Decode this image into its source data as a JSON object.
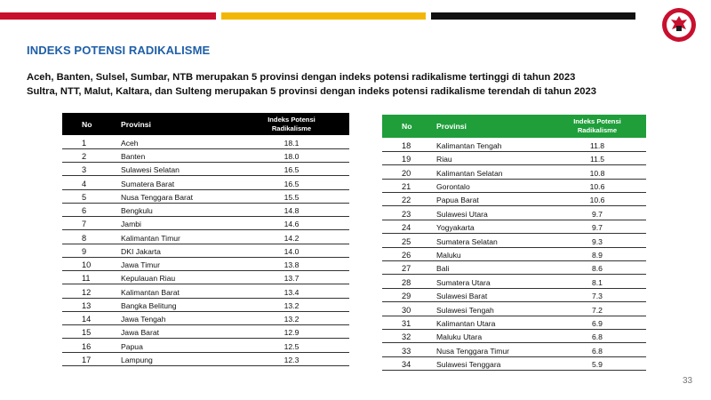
{
  "colors": {
    "accent_red": "#c8102e",
    "accent_yellow": "#f2b705",
    "accent_black": "#111111",
    "title_blue": "#1f5fa8",
    "table_green": "#1f9e3a"
  },
  "title": "INDEKS POTENSI RADIKALISME",
  "subtitle_1": "Aceh, Banten, Sulsel, Sumbar, NTB merupakan 5 provinsi dengan indeks potensi radikalisme tertinggi di tahun 2023",
  "subtitle_2": "Sultra, NTT, Malut, Kaltara, dan Sulteng merupakan 5 provinsi dengan indeks potensi radikalisme terendah di tahun 2023",
  "logo_icon": "bnpt-garuda-emblem-icon",
  "headers": {
    "no": "No",
    "provinsi": "Provinsi",
    "indeks_line1": "Indeks Potensi",
    "indeks_line2": "Radikalisme"
  },
  "table_top": [
    {
      "no": "1",
      "provinsi": "Aceh",
      "indeks": "18.1"
    },
    {
      "no": "2",
      "provinsi": "Banten",
      "indeks": "18.0"
    },
    {
      "no": "3",
      "provinsi": "Sulawesi Selatan",
      "indeks": "16.5"
    },
    {
      "no": "4",
      "provinsi": "Sumatera Barat",
      "indeks": "16.5"
    },
    {
      "no": "5",
      "provinsi": "Nusa Tenggara Barat",
      "indeks": "15.5"
    },
    {
      "no": "6",
      "provinsi": "Bengkulu",
      "indeks": "14.8"
    },
    {
      "no": "7",
      "provinsi": "Jambi",
      "indeks": "14.6"
    },
    {
      "no": "8",
      "provinsi": "Kalimantan Timur",
      "indeks": "14.2"
    },
    {
      "no": "9",
      "provinsi": "DKI Jakarta",
      "indeks": "14.0"
    },
    {
      "no": "10",
      "provinsi": "Jawa Timur",
      "indeks": "13.8"
    },
    {
      "no": "11",
      "provinsi": "Kepulauan Riau",
      "indeks": "13.7"
    },
    {
      "no": "12",
      "provinsi": "Kalimantan Barat",
      "indeks": "13.4"
    },
    {
      "no": "13",
      "provinsi": "Bangka Belitung",
      "indeks": "13.2"
    },
    {
      "no": "14",
      "provinsi": "Jawa Tengah",
      "indeks": "13.2"
    },
    {
      "no": "15",
      "provinsi": "Jawa Barat",
      "indeks": "12.9"
    },
    {
      "no": "16",
      "provinsi": "Papua",
      "indeks": "12.5"
    },
    {
      "no": "17",
      "provinsi": "Lampung",
      "indeks": "12.3"
    }
  ],
  "table_bottom": [
    {
      "no": "18",
      "provinsi": "Kalimantan Tengah",
      "indeks": "11.8"
    },
    {
      "no": "19",
      "provinsi": "Riau",
      "indeks": "11.5"
    },
    {
      "no": "20",
      "provinsi": "Kalimantan Selatan",
      "indeks": "10.8"
    },
    {
      "no": "21",
      "provinsi": "Gorontalo",
      "indeks": "10.6"
    },
    {
      "no": "22",
      "provinsi": "Papua Barat",
      "indeks": "10.6"
    },
    {
      "no": "23",
      "provinsi": "Sulawesi Utara",
      "indeks": "9.7"
    },
    {
      "no": "24",
      "provinsi": "Yogyakarta",
      "indeks": "9.7"
    },
    {
      "no": "25",
      "provinsi": "Sumatera Selatan",
      "indeks": "9.3"
    },
    {
      "no": "26",
      "provinsi": "Maluku",
      "indeks": "8.9"
    },
    {
      "no": "27",
      "provinsi": "Bali",
      "indeks": "8.6"
    },
    {
      "no": "28",
      "provinsi": "Sumatera Utara",
      "indeks": "8.1"
    },
    {
      "no": "29",
      "provinsi": "Sulawesi Barat",
      "indeks": "7.3"
    },
    {
      "no": "30",
      "provinsi": "Sulawesi Tengah",
      "indeks": "7.2"
    },
    {
      "no": "31",
      "provinsi": "Kalimantan Utara",
      "indeks": "6.9"
    },
    {
      "no": "32",
      "provinsi": "Maluku Utara",
      "indeks": "6.8"
    },
    {
      "no": "33",
      "provinsi": "Nusa Tenggara Timur",
      "indeks": "6.8"
    },
    {
      "no": "34",
      "provinsi": "Sulawesi Tenggara",
      "indeks": "5.9"
    }
  ],
  "page_number": "33"
}
